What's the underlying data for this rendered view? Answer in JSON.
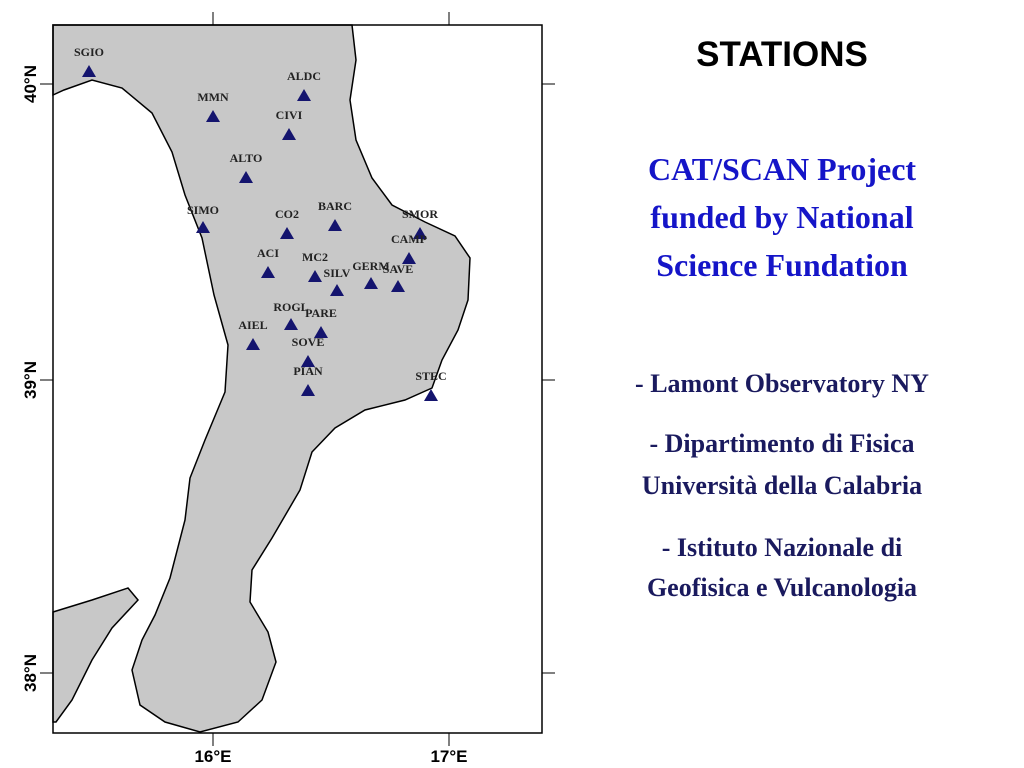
{
  "map": {
    "lat_labels": [
      "40°N",
      "39°N",
      "38°N"
    ],
    "lon_labels": [
      "16°E",
      "17°E"
    ],
    "stations": [
      "SGIO",
      "ALDC",
      "MMN",
      "CIVI",
      "ALTO",
      "SIMO",
      "CO2",
      "BARC",
      "SMOR",
      "CAMP",
      "ACI",
      "MC2",
      "SILV",
      "GERM",
      "SAVE",
      "ROGL",
      "PARE",
      "AIEL",
      "SOVE",
      "PIAN",
      "STEC"
    ]
  },
  "text": {
    "title": "STATIONS",
    "project_lines": [
      "CAT/SCAN Project",
      "funded by National",
      "Science Fundation"
    ],
    "partners": [
      [
        "- Lamont Observatory NY"
      ],
      [
        "- Dipartimento di Fisica",
        "Università della Calabria"
      ],
      [
        "- Istituto Nazionale di",
        "Geofisica e Vulcanologia"
      ]
    ]
  }
}
